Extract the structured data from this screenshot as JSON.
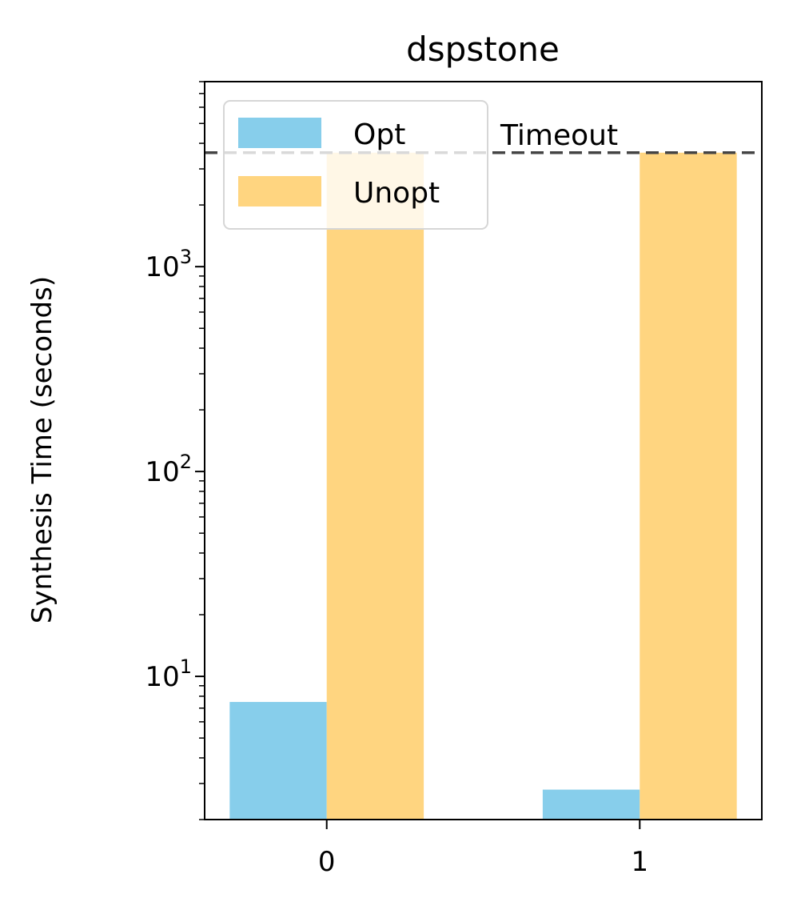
{
  "chart_data": {
    "type": "bar",
    "title": "dspstone",
    "xlabel": "",
    "ylabel": "Synthesis Time (seconds)",
    "yscale": "log",
    "ylim": [
      2.0,
      8000
    ],
    "grid": false,
    "legend_position": "top-left",
    "categories": [
      "0",
      "1"
    ],
    "series": [
      {
        "name": "Opt",
        "color": "#87CEEB",
        "values": [
          7.5,
          2.8
        ]
      },
      {
        "name": "Unopt",
        "color": "#FFD580",
        "values": [
          3600,
          3600
        ]
      }
    ],
    "timeout": {
      "label": "Timeout",
      "value": 3600
    },
    "y_tick_labels": [
      {
        "base": "10",
        "exp": "1",
        "value": 10
      },
      {
        "base": "10",
        "exp": "2",
        "value": 100
      },
      {
        "base": "10",
        "exp": "3",
        "value": 1000
      }
    ]
  }
}
